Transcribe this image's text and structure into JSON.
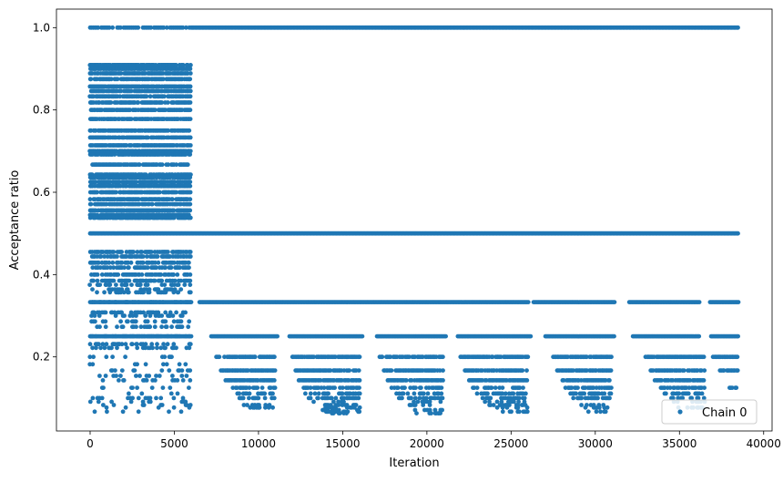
{
  "chart_data": {
    "type": "scatter",
    "title": "",
    "xlabel": "Iteration",
    "ylabel": "Acceptance ratio",
    "xlim": [
      -2000,
      40500
    ],
    "ylim": [
      0.02,
      1.045
    ],
    "x_ticks": [
      0,
      5000,
      10000,
      15000,
      20000,
      25000,
      30000,
      35000,
      40000
    ],
    "x_tick_labels": [
      "0",
      "5000",
      "10000",
      "15000",
      "20000",
      "25000",
      "30000",
      "35000",
      "40000"
    ],
    "y_ticks": [
      0.2,
      0.4,
      0.6,
      0.8,
      1.0
    ],
    "y_tick_labels": [
      "0.2",
      "0.4",
      "0.6",
      "0.8",
      "1.0"
    ],
    "grid": false,
    "legend": {
      "position": "lower-right",
      "entries": [
        "Chain 0"
      ]
    },
    "colors": {
      "series": "#1f77b4"
    },
    "series": [
      {
        "name": "Chain 0",
        "marker": "circle",
        "bands_continuous": [
          {
            "y": 1.0,
            "x_range": [
              6000,
              38500
            ]
          },
          {
            "y": 0.5,
            "x_range": [
              0,
              38500
            ]
          },
          {
            "y": 1.0,
            "x_range": [
              0,
              6000
            ],
            "density": "sparse"
          }
        ],
        "bands_with_gaps": [
          {
            "y": 0.333,
            "x_ranges": [
              [
                0,
                6000
              ],
              [
                6500,
                38500
              ]
            ],
            "gaps": [
              [
                26100,
                26300
              ],
              [
                31200,
                32000
              ],
              [
                36200,
                36800
              ]
            ]
          },
          {
            "y": 0.25,
            "x_ranges": [
              [
                0,
                6000
              ],
              [
                7200,
                38500
              ]
            ],
            "gaps": [
              [
                11200,
                11800
              ],
              [
                16200,
                17000
              ],
              [
                21200,
                21800
              ],
              [
                26200,
                27000
              ],
              [
                31200,
                32200
              ],
              [
                36200,
                36800
              ]
            ]
          }
        ],
        "early_phase_levels": {
          "x_range": [
            0,
            6000
          ],
          "values": [
            0.909,
            0.9,
            0.889,
            0.875,
            0.857,
            0.846,
            0.833,
            0.818,
            0.8,
            0.778,
            0.75,
            0.733,
            0.714,
            0.7,
            0.692,
            0.667,
            0.643,
            0.636,
            0.625,
            0.615,
            0.6,
            0.583,
            0.571,
            0.556,
            0.545,
            0.538,
            0.455,
            0.444,
            0.429,
            0.417,
            0.4,
            0.385,
            0.375,
            0.364,
            0.357,
            0.333,
            0.308,
            0.3,
            0.286,
            0.273,
            0.25,
            0.231,
            0.222,
            0.2,
            0.182,
            0.167,
            0.154,
            0.143,
            0.125,
            0.111,
            0.1,
            0.091,
            0.083,
            0.077,
            0.067
          ]
        },
        "later_phase_clusters": [
          {
            "x_range": [
              7500,
              11000
            ],
            "values": [
              0.2,
              0.167,
              0.143,
              0.125,
              0.111,
              0.1,
              0.083,
              0.077
            ]
          },
          {
            "x_range": [
              12000,
              16000
            ],
            "values": [
              0.2,
              0.167,
              0.143,
              0.125,
              0.111,
              0.1,
              0.091,
              0.083,
              0.077,
              0.071,
              0.067,
              0.063
            ]
          },
          {
            "x_range": [
              17200,
              21000
            ],
            "values": [
              0.2,
              0.167,
              0.143,
              0.125,
              0.111,
              0.1,
              0.091,
              0.083,
              0.071,
              0.063
            ]
          },
          {
            "x_range": [
              22000,
              26000
            ],
            "values": [
              0.2,
              0.167,
              0.143,
              0.125,
              0.111,
              0.1,
              0.091,
              0.083,
              0.077,
              0.067
            ]
          },
          {
            "x_range": [
              27500,
              31000
            ],
            "values": [
              0.2,
              0.167,
              0.143,
              0.125,
              0.111,
              0.1,
              0.083,
              0.077,
              0.067
            ]
          },
          {
            "x_range": [
              33000,
              36500
            ],
            "values": [
              0.2,
              0.167,
              0.143,
              0.125,
              0.111,
              0.1,
              0.091,
              0.077
            ]
          },
          {
            "x_range": [
              37000,
              38500
            ],
            "values": [
              0.2,
              0.167,
              0.125
            ]
          }
        ]
      }
    ]
  }
}
